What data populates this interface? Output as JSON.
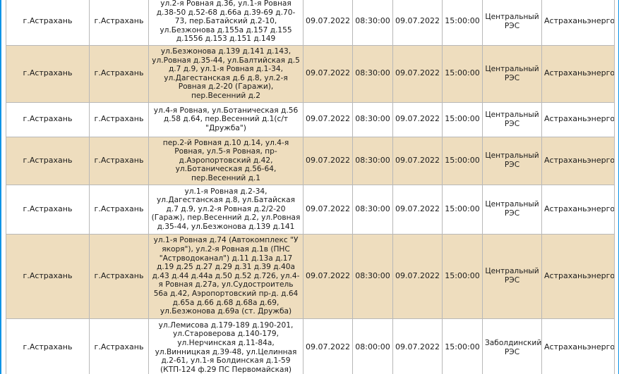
{
  "rows": [
    {
      "district": "г.Астрахань",
      "locality": "г.Астрахань",
      "address": "ул.2-я Ровная д.36, ул.1-я Ровная д.38-50 д.52-68 д.66а д.39-69 д.70-73, пер.Батайский д.2-10, ул.Безжонова д.155а д.157 д.155 д.1556 д.153 д.151 д.149",
      "start_date": "09.07.2022",
      "start_time": "08:30:00",
      "end_date": "09.07.2022",
      "end_time": "15:00:00",
      "res": "Центральный РЭС",
      "org": "Астраханьэнерго"
    },
    {
      "district": "г.Астрахань",
      "locality": "г.Астрахань",
      "address": "ул.Безжонова д.139 д.141 д.143, ул.Ровная д.35-44, ул.Балтийская д.5 д.7 д.9, ул.1-я Ровная д.1-34, ул.Дагестанская д.6 д.8, ул.2-я Ровная д.2-20 (Гаражи), пер.Весенний д.2",
      "start_date": "09.07.2022",
      "start_time": "08:30:00",
      "end_date": "09.07.2022",
      "end_time": "15:00:00",
      "res": "Центральный РЭС",
      "org": "Астраханьэнерго"
    },
    {
      "district": "г.Астрахань",
      "locality": "г.Астрахань",
      "address": "ул.4-я Ровная, ул.Ботаническая д.56 д.58 д.64, пер.Весенний д.1(с/т \"Дружба\")",
      "start_date": "09.07.2022",
      "start_time": "08:30:00",
      "end_date": "09.07.2022",
      "end_time": "15:00:00",
      "res": "Центральный РЭС",
      "org": "Астраханьэнерго"
    },
    {
      "district": "г.Астрахань",
      "locality": "г.Астрахань",
      "address": "пер.2-й Ровная д.10 д.14, ул.4-я Ровная, ул.5-я Ровная, пр-д.Аэропортовский д.42, ул.Ботаническая д.56-64, пер.Весенний д.1",
      "start_date": "09.07.2022",
      "start_time": "08:30:00",
      "end_date": "09.07.2022",
      "end_time": "15:00:00",
      "res": "Центральный РЭС",
      "org": "Астраханьэнерго"
    },
    {
      "district": "г.Астрахань",
      "locality": "г.Астрахань",
      "address": "ул.1-я Ровная д.2-34, ул.Дагестанская д.8, ул.Батайская д.7 д.9, ул.2-я Ровная д.2/2-20 (Гараж), пер.Весенний д.2, ул.Ровная д.35-44, ул.Безжонова д.139 д.141",
      "start_date": "09.07.2022",
      "start_time": "08:30:00",
      "end_date": "09.07.2022",
      "end_time": "15:00:00",
      "res": "Центральный РЭС",
      "org": "Астраханьэнерго"
    },
    {
      "district": "г.Астрахань",
      "locality": "г.Астрахань",
      "address": "ул.1-я Ровная д.74 (Автокомплекс \"У якоря\"), ул.2-я Ровная д.1в (ПНС \"Астрводоканал\") д.11 д.13а д.17 д.19 д.25 д.27 д.29 д.31 д.39 д.40а д.43 д.44 д.44а д.50 д.52 д.726, ул.4-я Ровная д.27а, ул.Судостроитель 56а д.42, Аэропортовский пр-д. д.64 д.65а д.66 д.68 д.68а д.69, ул.Безжонова д.69а (ст. Дружба)",
      "start_date": "09.07.2022",
      "start_time": "08:30:00",
      "end_date": "09.07.2022",
      "end_time": "15:00:00",
      "res": "Центральный РЭС",
      "org": "Астраханьэнерго"
    },
    {
      "district": "г.Астрахань",
      "locality": "г.Астрахань",
      "address": "ул.Лемисова д.179-189 д.190-201, ул.Староверова д.140-179, ул.Нерчинская д.11-84а, ул.Винницкая д.39-48, ул.Целинная д.2-61, ул.1-я Болдинская д.1-59 (КТП-124 ф.29 ПС Первомайская)",
      "start_date": "09.07.2022",
      "start_time": "08:00:00",
      "end_date": "09.07.2022",
      "end_time": "15:00:00",
      "res": "Заболдинский РЭС",
      "org": "Астраханьэнерго"
    }
  ]
}
